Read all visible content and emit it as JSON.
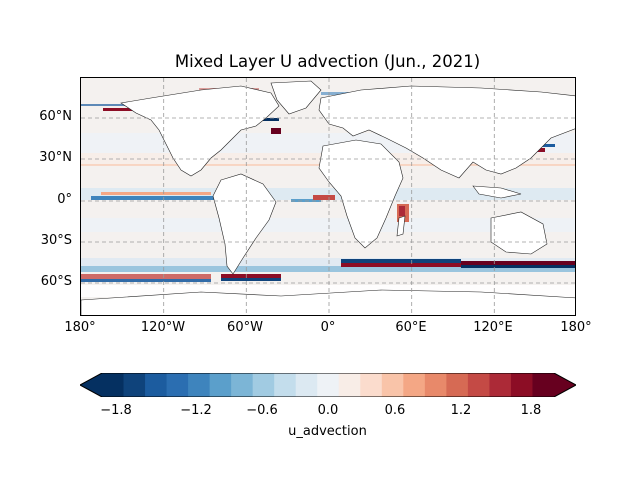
{
  "title": "Mixed Layer U advection (Jun., 2021)",
  "lat_labels": [
    "60°N",
    "30°N",
    "0°",
    "30°S",
    "60°S"
  ],
  "lon_labels": [
    "180°",
    "120°W",
    "60°W",
    "0°",
    "60°E",
    "120°E",
    "180°"
  ],
  "colorbar": {
    "label": "u_advection",
    "ticks": [
      "−1.8",
      "−1.2",
      "−0.6",
      "0.0",
      "0.6",
      "1.2",
      "1.8"
    ],
    "levels": [
      -2.0,
      -1.8,
      -1.6,
      -1.4,
      -1.2,
      -1.0,
      -0.8,
      -0.6,
      -0.4,
      -0.2,
      0.0,
      0.2,
      0.4,
      0.6,
      0.8,
      1.0,
      1.2,
      1.4,
      1.6,
      1.8,
      2.0
    ],
    "extend": "both",
    "colors": [
      "#053061",
      "#0f437b",
      "#1c5c9f",
      "#2b6eb1",
      "#3e84bd",
      "#5b9fcb",
      "#7cb5d6",
      "#a1cbe2",
      "#c3ddec",
      "#dce9f2",
      "#eef2f6",
      "#f8ede7",
      "#fbdccd",
      "#f9c4a9",
      "#f4a785",
      "#e8896a",
      "#d66a54",
      "#c44a45",
      "#ac2a37",
      "#8c0d25",
      "#67001f"
    ],
    "over_color": "#67001f",
    "under_color": "#053061"
  },
  "map": {
    "projection": "PlateCarree",
    "extent": {
      "lon": [
        -180,
        180
      ],
      "lat": [
        -85,
        90
      ]
    },
    "gridlines": true,
    "land_color": "#ffffff",
    "ocean_background": "#f4f1ef"
  }
}
